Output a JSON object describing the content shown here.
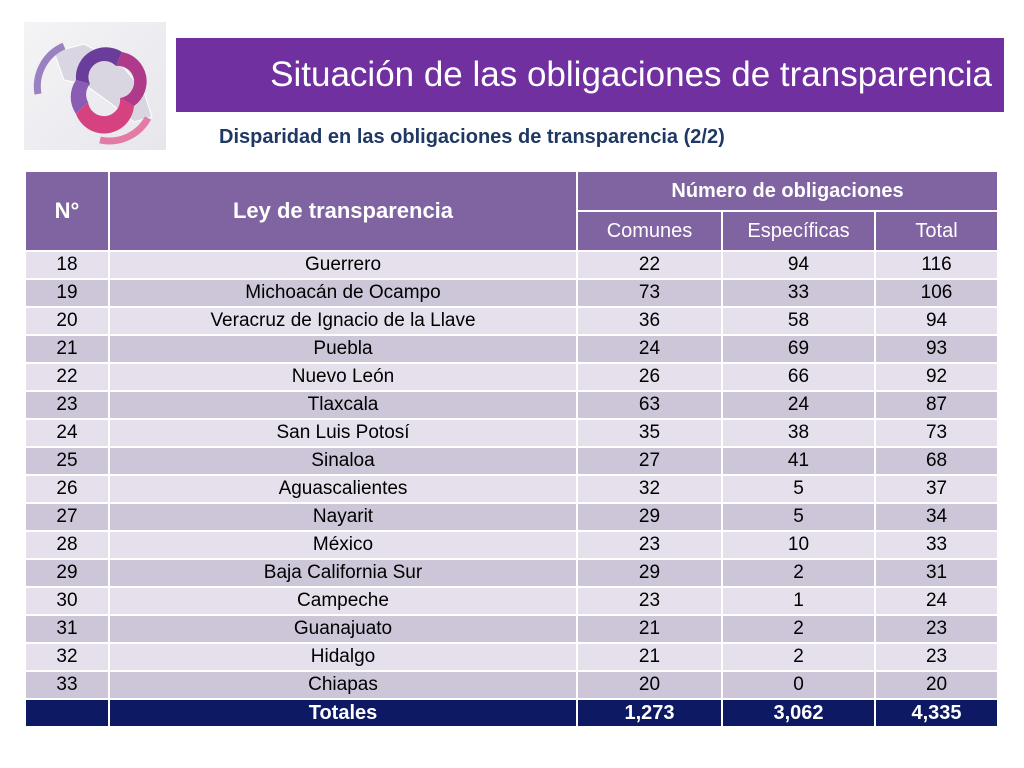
{
  "header": {
    "title": "Situación de las obligaciones de transparencia",
    "subtitle": "Disparidad en las obligaciones de transparencia (2/2)"
  },
  "colors": {
    "title_bar": "#7030a0",
    "table_header": "#8064a2",
    "row_light": "#e6e0ec",
    "row_dark": "#cdc6d9",
    "totals_row": "#0d1a63",
    "subtitle_text": "#1f3864"
  },
  "logo": {
    "icon": "transparency-institute-logo"
  },
  "table": {
    "columns": {
      "number": "N°",
      "law": "Ley de transparencia",
      "group": "Número de obligaciones",
      "common": "Comunes",
      "specific": "Específicas",
      "total": "Total"
    },
    "rows": [
      {
        "n": "18",
        "state": "Guerrero",
        "common": "22",
        "specific": "94",
        "total": "116"
      },
      {
        "n": "19",
        "state": "Michoacán de Ocampo",
        "common": "73",
        "specific": "33",
        "total": "106"
      },
      {
        "n": "20",
        "state": "Veracruz de Ignacio de la Llave",
        "common": "36",
        "specific": "58",
        "total": "94"
      },
      {
        "n": "21",
        "state": "Puebla",
        "common": "24",
        "specific": "69",
        "total": "93"
      },
      {
        "n": "22",
        "state": "Nuevo León",
        "common": "26",
        "specific": "66",
        "total": "92"
      },
      {
        "n": "23",
        "state": "Tlaxcala",
        "common": "63",
        "specific": "24",
        "total": "87"
      },
      {
        "n": "24",
        "state": "San Luis Potosí",
        "common": "35",
        "specific": "38",
        "total": "73"
      },
      {
        "n": "25",
        "state": "Sinaloa",
        "common": "27",
        "specific": "41",
        "total": "68"
      },
      {
        "n": "26",
        "state": "Aguascalientes",
        "common": "32",
        "specific": "5",
        "total": "37"
      },
      {
        "n": "27",
        "state": "Nayarit",
        "common": "29",
        "specific": "5",
        "total": "34"
      },
      {
        "n": "28",
        "state": "México",
        "common": "23",
        "specific": "10",
        "total": "33"
      },
      {
        "n": "29",
        "state": "Baja California Sur",
        "common": "29",
        "specific": "2",
        "total": "31"
      },
      {
        "n": "30",
        "state": "Campeche",
        "common": "23",
        "specific": "1",
        "total": "24"
      },
      {
        "n": "31",
        "state": "Guanajuato",
        "common": "21",
        "specific": "2",
        "total": "23"
      },
      {
        "n": "32",
        "state": "Hidalgo",
        "common": "21",
        "specific": "2",
        "total": "23"
      },
      {
        "n": "33",
        "state": "Chiapas",
        "common": "20",
        "specific": "0",
        "total": "20"
      }
    ],
    "totals": {
      "label": "Totales",
      "common": "1,273",
      "specific": "3,062",
      "total": "4,335"
    }
  }
}
